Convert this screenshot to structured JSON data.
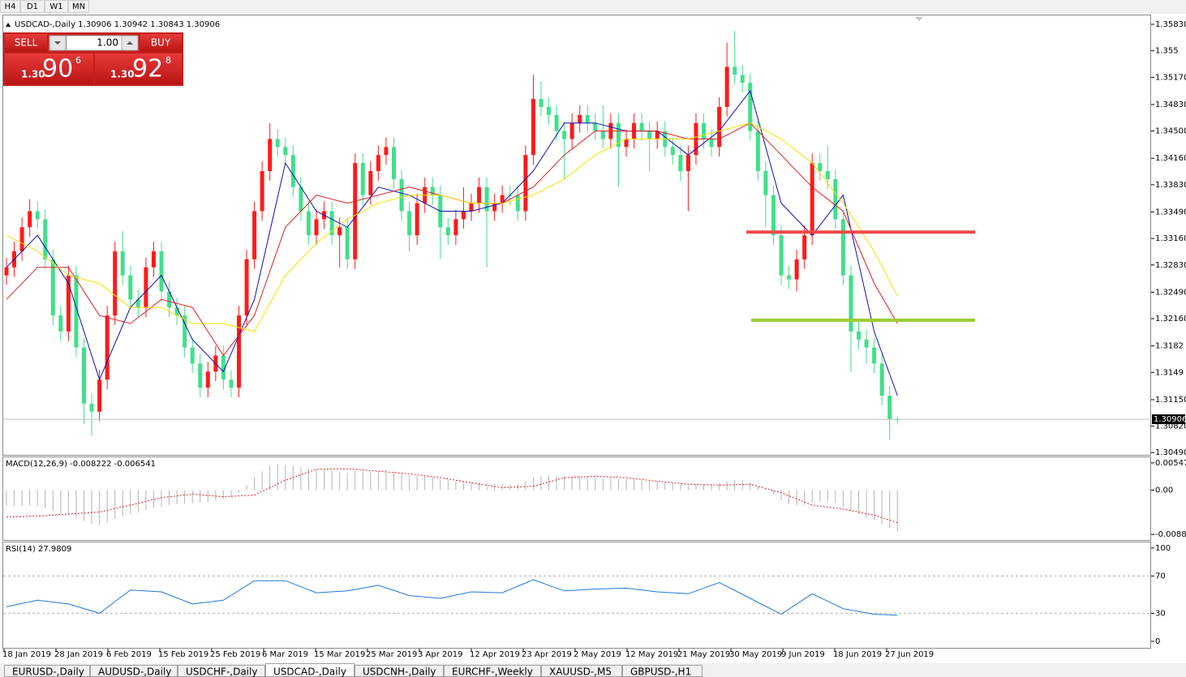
{
  "toolbar": {
    "timeframes": [
      "H4",
      "D1",
      "W1",
      "MN"
    ]
  },
  "trade_panel": {
    "sell_label": "SELL",
    "buy_label": "BUY",
    "volume": "1.00",
    "sell_price": {
      "big": "1.30",
      "pips": "90",
      "point": "6"
    },
    "buy_price": {
      "big": "1.30",
      "pips": "92",
      "point": "8"
    }
  },
  "chart_data": [
    {
      "type": "candlestick",
      "title": "USDCAD-,Daily  1.30906 1.30942 1.30843 1.30906",
      "up_color": "#ff1a1a",
      "down_color": "#40e08a",
      "open": [
        1.327,
        1.328,
        1.33,
        1.333,
        1.335,
        1.334,
        1.329,
        1.322,
        1.32,
        1.327,
        1.318,
        1.311,
        1.31,
        1.314,
        1.322,
        1.33,
        1.327,
        1.324,
        1.323,
        1.328,
        1.33,
        1.325,
        1.323,
        1.322,
        1.318,
        1.316,
        1.313,
        1.315,
        1.317,
        1.314,
        1.313,
        1.322,
        1.329,
        1.335,
        1.34,
        1.344,
        1.343,
        1.342,
        1.338,
        1.335,
        1.332,
        1.334,
        1.335,
        1.332,
        1.333,
        1.329,
        1.341,
        1.337,
        1.34,
        1.342,
        1.343,
        1.339,
        1.335,
        1.332,
        1.336,
        1.338,
        1.337,
        1.333,
        1.332,
        1.334,
        1.335,
        1.336,
        1.338,
        1.335,
        1.336,
        1.337,
        1.337,
        1.335,
        1.342,
        1.349,
        1.348,
        1.347,
        1.345,
        1.344,
        1.346,
        1.347,
        1.346,
        1.345,
        1.344,
        1.346,
        1.343,
        1.344,
        1.346,
        1.345,
        1.344,
        1.345,
        1.343,
        1.342,
        1.34,
        1.342,
        1.346,
        1.344,
        1.343,
        1.348,
        1.353,
        1.352,
        1.351,
        1.345,
        1.34,
        1.337,
        1.332,
        1.327,
        1.3265,
        1.329,
        1.332,
        1.341,
        1.34,
        1.339,
        1.334,
        1.327,
        1.32,
        1.319,
        1.318,
        1.316,
        1.312,
        1.30906
      ],
      "high": [
        1.3292,
        1.3312,
        1.3342,
        1.3365,
        1.3362,
        1.3352,
        1.3302,
        1.3232,
        1.3282,
        1.3282,
        1.3192,
        1.3122,
        1.3152,
        1.3232,
        1.3312,
        1.3325,
        1.3282,
        1.3252,
        1.3292,
        1.3312,
        1.3312,
        1.3262,
        1.3242,
        1.3232,
        1.3192,
        1.3172,
        1.3162,
        1.3182,
        1.3182,
        1.3152,
        1.3232,
        1.3302,
        1.3362,
        1.3412,
        1.346,
        1.3452,
        1.3442,
        1.3432,
        1.3392,
        1.3362,
        1.3352,
        1.3362,
        1.3362,
        1.3342,
        1.3342,
        1.3422,
        1.3422,
        1.3412,
        1.3432,
        1.3442,
        1.3442,
        1.3402,
        1.3362,
        1.3372,
        1.3392,
        1.3392,
        1.3382,
        1.3342,
        1.3352,
        1.338,
        1.3372,
        1.3392,
        1.3392,
        1.3372,
        1.3382,
        1.3382,
        1.3382,
        1.3432,
        1.352,
        1.3512,
        1.3492,
        1.3482,
        1.3462,
        1.3472,
        1.3482,
        1.3482,
        1.3472,
        1.3482,
        1.3472,
        1.3472,
        1.3452,
        1.3472,
        1.3472,
        1.3462,
        1.3462,
        1.3462,
        1.3442,
        1.3432,
        1.3432,
        1.3472,
        1.3472,
        1.3452,
        1.3492,
        1.356,
        1.3575,
        1.3532,
        1.3522,
        1.3462,
        1.3412,
        1.3382,
        1.3332,
        1.3282,
        1.3302,
        1.3332,
        1.3422,
        1.3422,
        1.3432,
        1.3402,
        1.3352,
        1.3282,
        1.3212,
        1.3202,
        1.3192,
        1.3172,
        1.3132,
        1.30942
      ],
      "low": [
        1.3258,
        1.3268,
        1.3288,
        1.3318,
        1.3328,
        1.3278,
        1.3208,
        1.3188,
        1.3188,
        1.3168,
        1.3085,
        1.307,
        1.3088,
        1.3128,
        1.3208,
        1.3258,
        1.3228,
        1.3218,
        1.3218,
        1.3268,
        1.3238,
        1.3218,
        1.3208,
        1.3168,
        1.3148,
        1.3118,
        1.3118,
        1.3138,
        1.3128,
        1.3118,
        1.3118,
        1.3208,
        1.3278,
        1.3338,
        1.3388,
        1.3418,
        1.3408,
        1.3368,
        1.3338,
        1.3308,
        1.3308,
        1.3328,
        1.3308,
        1.328,
        1.3278,
        1.3278,
        1.3358,
        1.3358,
        1.3388,
        1.3408,
        1.3378,
        1.3338,
        1.33,
        1.3308,
        1.3348,
        1.3358,
        1.329,
        1.3308,
        1.3308,
        1.3328,
        1.3338,
        1.3348,
        1.328,
        1.3338,
        1.3348,
        1.3358,
        1.3338,
        1.3338,
        1.3408,
        1.3468,
        1.3458,
        1.3438,
        1.339,
        1.3428,
        1.3448,
        1.3448,
        1.3438,
        1.3428,
        1.3428,
        1.338,
        1.3418,
        1.3428,
        1.3438,
        1.34,
        1.3428,
        1.3418,
        1.3408,
        1.3388,
        1.335,
        1.3408,
        1.3428,
        1.3418,
        1.3418,
        1.3468,
        1.3508,
        1.3498,
        1.3438,
        1.3388,
        1.333,
        1.3308,
        1.3258,
        1.3253,
        1.325,
        1.3278,
        1.3308,
        1.3388,
        1.3378,
        1.3328,
        1.3258,
        1.315,
        1.3178,
        1.316,
        1.3148,
        1.3108,
        1.3065,
        1.30843
      ],
      "close": [
        1.328,
        1.33,
        1.333,
        1.335,
        1.334,
        1.329,
        1.322,
        1.32,
        1.327,
        1.318,
        1.311,
        1.31,
        1.314,
        1.322,
        1.33,
        1.327,
        1.324,
        1.323,
        1.328,
        1.33,
        1.325,
        1.323,
        1.322,
        1.318,
        1.316,
        1.313,
        1.315,
        1.317,
        1.314,
        1.313,
        1.322,
        1.329,
        1.335,
        1.34,
        1.344,
        1.343,
        1.342,
        1.338,
        1.335,
        1.332,
        1.334,
        1.335,
        1.332,
        1.333,
        1.329,
        1.341,
        1.337,
        1.34,
        1.342,
        1.343,
        1.339,
        1.335,
        1.332,
        1.336,
        1.338,
        1.337,
        1.333,
        1.332,
        1.334,
        1.335,
        1.336,
        1.338,
        1.335,
        1.336,
        1.337,
        1.337,
        1.335,
        1.342,
        1.349,
        1.348,
        1.347,
        1.345,
        1.344,
        1.346,
        1.347,
        1.346,
        1.345,
        1.344,
        1.346,
        1.343,
        1.344,
        1.346,
        1.345,
        1.344,
        1.345,
        1.343,
        1.342,
        1.34,
        1.342,
        1.346,
        1.344,
        1.343,
        1.348,
        1.353,
        1.352,
        1.351,
        1.345,
        1.34,
        1.337,
        1.332,
        1.327,
        1.3265,
        1.329,
        1.332,
        1.341,
        1.34,
        1.339,
        1.334,
        1.327,
        1.32,
        1.319,
        1.318,
        1.316,
        1.312,
        1.309,
        1.30906
      ],
      "series": [
        {
          "color": "#1010b0",
          "x": [
            0,
            4,
            8,
            12,
            16,
            20,
            24,
            28,
            32,
            36,
            40,
            44,
            48,
            52,
            56,
            60,
            64,
            68,
            72,
            76,
            80,
            84,
            88,
            92,
            96,
            100,
            104,
            108,
            112,
            115
          ],
          "values": [
            1.328,
            1.332,
            1.326,
            1.314,
            1.323,
            1.327,
            1.319,
            1.315,
            1.324,
            1.341,
            1.335,
            1.333,
            1.338,
            1.337,
            1.335,
            1.335,
            1.336,
            1.34,
            1.346,
            1.346,
            1.345,
            1.345,
            1.342,
            1.345,
            1.35,
            1.336,
            1.332,
            1.337,
            1.32,
            1.312
          ]
        },
        {
          "color": "#e02020",
          "x": [
            0,
            4,
            8,
            12,
            16,
            20,
            24,
            28,
            32,
            36,
            40,
            44,
            48,
            52,
            56,
            60,
            64,
            68,
            72,
            76,
            80,
            84,
            88,
            92,
            96,
            100,
            104,
            108,
            112,
            115
          ],
          "values": [
            1.324,
            1.328,
            1.328,
            1.322,
            1.321,
            1.324,
            1.323,
            1.317,
            1.322,
            1.333,
            1.337,
            1.336,
            1.337,
            1.338,
            1.337,
            1.336,
            1.336,
            1.338,
            1.342,
            1.345,
            1.345,
            1.345,
            1.344,
            1.344,
            1.346,
            1.342,
            1.338,
            1.335,
            1.326,
            1.321
          ]
        },
        {
          "color": "#f5e000",
          "x": [
            0,
            4,
            8,
            12,
            16,
            20,
            24,
            28,
            32,
            36,
            40,
            44,
            48,
            52,
            56,
            60,
            64,
            68,
            72,
            76,
            80,
            84,
            88,
            92,
            96,
            100,
            104,
            108,
            112,
            115
          ],
          "values": [
            1.332,
            1.33,
            1.327,
            1.326,
            1.323,
            1.323,
            1.321,
            1.321,
            1.32,
            1.327,
            1.331,
            1.334,
            1.336,
            1.337,
            1.337,
            1.336,
            1.336,
            1.337,
            1.339,
            1.342,
            1.344,
            1.344,
            1.344,
            1.345,
            1.346,
            1.344,
            1.341,
            1.336,
            1.33,
            1.3244
          ]
        }
      ],
      "levels": [
        {
          "value": 1.3324,
          "color": "#f24848"
        },
        {
          "value": 1.3214,
          "color": "#9acd32"
        }
      ],
      "bid": 1.30906,
      "ylim": [
        1.30462,
        1.35931
      ],
      "yticks": [
        {
          "value": 1.3583,
          "label": "1.35830"
        },
        1.355,
        {
          "value": 1.3517,
          "label": "1.35170"
        },
        {
          "value": 1.3483,
          "label": "1.34830"
        },
        {
          "value": 1.345,
          "label": "1.34500"
        },
        {
          "value": 1.3416,
          "label": "1.34160"
        },
        {
          "value": 1.3383,
          "label": "1.33830"
        },
        {
          "value": 1.3349,
          "label": "1.33490"
        },
        {
          "value": 1.3316,
          "label": "1.33160"
        },
        {
          "value": 1.3283,
          "label": "1.32830"
        },
        {
          "value": 1.3249,
          "label": "1.32490"
        },
        {
          "value": 1.3216,
          "label": "1.32160"
        },
        1.3182,
        1.3149,
        {
          "value": 1.3115,
          "label": "1.31150"
        },
        {
          "value": 1.3082,
          "label": "1.30820"
        },
        {
          "value": 1.3049,
          "label": "1.30490"
        }
      ]
    },
    {
      "type": "macd",
      "title": "MACD(12,26,9) -0.008222 -0.006541",
      "color": "#b4b4b4",
      "values": [
        -0.003,
        -0.0032,
        -0.0032,
        -0.003,
        -0.0032,
        -0.0036,
        -0.0042,
        -0.0048,
        -0.005,
        -0.0055,
        -0.0062,
        -0.0068,
        -0.007,
        -0.0065,
        -0.0058,
        -0.0052,
        -0.0048,
        -0.0045,
        -0.004,
        -0.0036,
        -0.0034,
        -0.003,
        -0.0028,
        -0.0027,
        -0.0026,
        -0.0025,
        -0.0024,
        -0.002,
        -0.0018,
        -0.0015,
        -0.0005,
        0.001,
        0.0025,
        0.0038,
        0.0048,
        0.0052,
        0.005,
        0.0048,
        0.0046,
        0.0044,
        0.0042,
        0.004,
        0.004,
        0.0036,
        0.0035,
        0.0038,
        0.0038,
        0.0036,
        0.0038,
        0.004,
        0.0036,
        0.0032,
        0.003,
        0.0028,
        0.0028,
        0.0026,
        0.0022,
        0.002,
        0.0018,
        0.0016,
        0.0016,
        0.0014,
        0.0014,
        0.0012,
        0.0012,
        0.001,
        0.0012,
        0.0018,
        0.0026,
        0.0028,
        0.003,
        0.0028,
        0.0028,
        0.0028,
        0.0028,
        0.0026,
        0.0026,
        0.0024,
        0.0024,
        0.0022,
        0.0022,
        0.0022,
        0.002,
        0.0018,
        0.0018,
        0.0016,
        0.0014,
        0.0012,
        0.001,
        0.0012,
        0.0012,
        0.0012,
        0.0014,
        0.0018,
        0.002,
        0.002,
        0.0016,
        0.0008,
        0.0002,
        -0.0008,
        -0.002,
        -0.0028,
        -0.003,
        -0.003,
        -0.0024,
        -0.0022,
        -0.0022,
        -0.0026,
        -0.0034,
        -0.0042,
        -0.0048,
        -0.0054,
        -0.006,
        -0.0068,
        -0.0076,
        -0.008222
      ],
      "signal": {
        "color": "#e02020",
        "x": [
          0,
          4,
          8,
          12,
          16,
          20,
          24,
          28,
          32,
          36,
          40,
          44,
          48,
          52,
          56,
          60,
          64,
          68,
          72,
          76,
          80,
          84,
          88,
          92,
          96,
          100,
          104,
          108,
          112,
          115
        ],
        "values": [
          -0.0054,
          -0.0052,
          -0.0048,
          -0.0044,
          -0.003,
          -0.0015,
          -0.0008,
          -0.0013,
          -0.001,
          0.002,
          0.0042,
          0.0043,
          0.0038,
          0.0033,
          0.0025,
          0.0015,
          0.0005,
          0.0008,
          0.0025,
          0.0028,
          0.0025,
          0.0018,
          0.0012,
          0.001,
          0.0012,
          -0.0005,
          -0.003,
          -0.0038,
          -0.005,
          -0.006541
        ]
      },
      "ylim": [
        -0.00999,
        0.0066
      ],
      "yticks": [
        0.005479,
        {
          "value": 0,
          "label": "0.00"
        },
        -0.008875
      ]
    },
    {
      "type": "line",
      "title": "RSI(14) 27.9809",
      "series": [
        {
          "color": "#1e78d8",
          "x": [
            0,
            4,
            8,
            12,
            16,
            20,
            24,
            28,
            32,
            36,
            40,
            44,
            48,
            52,
            56,
            60,
            64,
            68,
            72,
            76,
            80,
            84,
            88,
            92,
            96,
            100,
            104,
            108,
            112,
            115
          ],
          "values": [
            37,
            44,
            40,
            30,
            55,
            53,
            40,
            44,
            65,
            65,
            52,
            54,
            60,
            49,
            46,
            53,
            52,
            66,
            54,
            56,
            57,
            53,
            51,
            63,
            46,
            29,
            51,
            35,
            29,
            27.9809
          ]
        }
      ],
      "levels": [
        70,
        30
      ],
      "ylim": [
        -7,
        106
      ],
      "yticks": [
        100,
        70,
        30,
        0
      ]
    }
  ],
  "time_axis": {
    "labels": [
      "18 Jan 2019",
      "28 Jan 2019",
      "6 Feb 2019",
      "15 Feb 2019",
      "25 Feb 2019",
      "6 Mar 2019",
      "15 Mar 2019",
      "25 Mar 2019",
      "3 Apr 2019",
      "12 Apr 2019",
      "23 Apr 2019",
      "2 May 2019",
      "12 May 2019",
      "21 May 2019",
      "30 May 2019",
      "9 Jun 2019",
      "18 Jun 2019",
      "27 Jun 2019"
    ]
  },
  "tabs": {
    "items": [
      "EURUSD-,Daily",
      "AUDUSD-,Daily",
      "USDCHF-,Daily",
      "USDCAD-,Daily",
      "USDCNH-,Daily",
      "EURCHF-,Weekly",
      "XAUUSD-,M5",
      "GBPUSD-,H1"
    ],
    "active": 3
  }
}
